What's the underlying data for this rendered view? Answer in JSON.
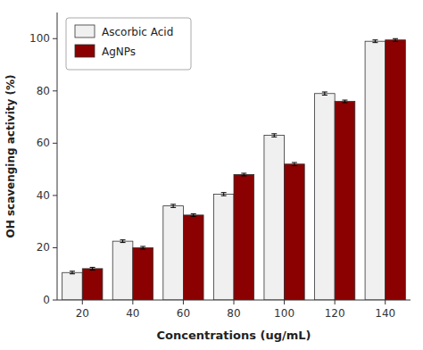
{
  "chart_data": {
    "type": "bar",
    "xlabel": "Concentrations (ug/mL)",
    "ylabel": "OH scavenging activity (%)",
    "categories": [
      "20",
      "40",
      "60",
      "80",
      "100",
      "120",
      "140"
    ],
    "series": [
      {
        "name": "Ascorbic Acid",
        "color": "#f0f0f0",
        "values": [
          10.5,
          22.5,
          36.0,
          40.5,
          63.0,
          79.0,
          99.0
        ],
        "errors": [
          0.5,
          0.5,
          0.6,
          0.6,
          0.6,
          0.6,
          0.5
        ]
      },
      {
        "name": "AgNPs",
        "color": "#8b0000",
        "values": [
          12.0,
          20.0,
          32.5,
          48.0,
          52.0,
          76.0,
          99.5
        ],
        "errors": [
          0.5,
          0.5,
          0.5,
          0.5,
          0.6,
          0.5,
          0.5
        ]
      }
    ],
    "ylim": [
      0,
      110
    ],
    "yticks": [
      0,
      20,
      40,
      60,
      80,
      100
    ],
    "grid": false,
    "legend": "upper left"
  }
}
